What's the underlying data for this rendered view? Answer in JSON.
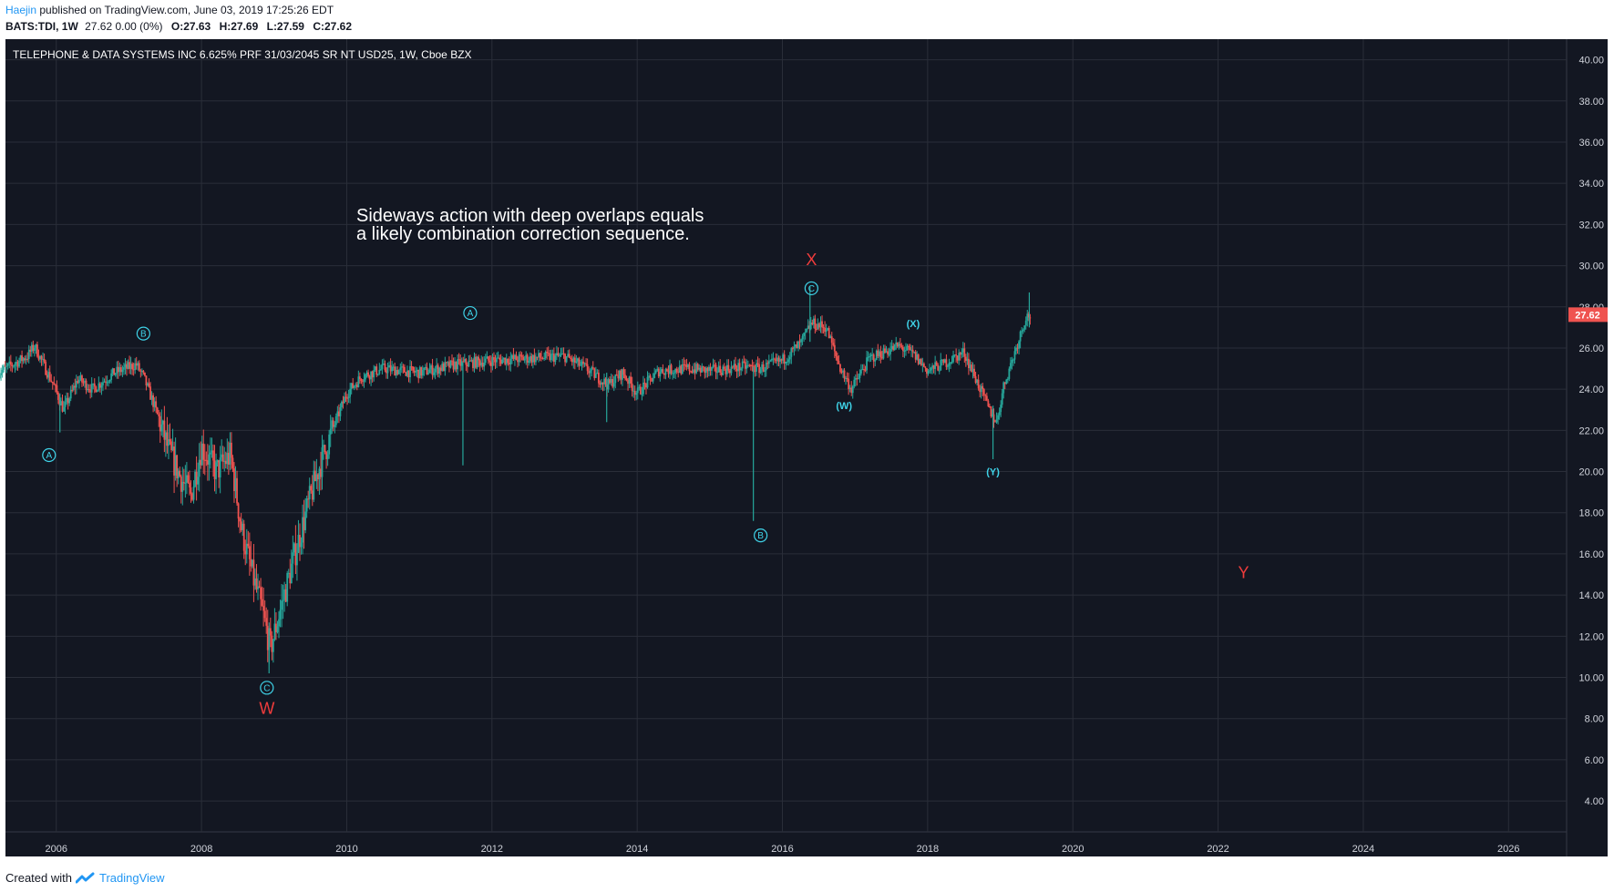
{
  "header": {
    "author": "Haejin",
    "published_text": "published on TradingView.com, June 03, 2019 17:25:26 EDT",
    "symbol": "BATS:TDI, 1W",
    "change": "27.62 0.00 (0%)",
    "open": "O:27.63",
    "high": "H:27.69",
    "low": "L:27.59",
    "close": "C:27.62"
  },
  "footer": {
    "created_with": "Created with",
    "brand": "TradingView"
  },
  "colors": {
    "background": "#131722",
    "grid": "#2a2e39",
    "up": "#26a69a",
    "down": "#ef5350",
    "wave_label": "#3fd3e8",
    "wave_red": "#f03c3c",
    "price_tag": "#ef5350"
  },
  "chart_data": {
    "type": "candlestick",
    "title": "TELEPHONE & DATA SYSTEMS INC 6.625% PRF 31/03/2045 SR NT USD25, 1W, Cboe BZX",
    "xlabel": "",
    "ylabel": "",
    "interval": "1W",
    "xlim": [
      2005.3,
      2026.8
    ],
    "ylim": [
      2.5,
      41
    ],
    "x_ticks": [
      "2006",
      "2008",
      "2010",
      "2012",
      "2014",
      "2016",
      "2018",
      "2020",
      "2022",
      "2024",
      "2026"
    ],
    "y_ticks": [
      "4.00",
      "6.00",
      "8.00",
      "10.00",
      "12.00",
      "14.00",
      "16.00",
      "18.00",
      "20.00",
      "22.00",
      "24.00",
      "26.00",
      "28.00",
      "30.00",
      "32.00",
      "34.00",
      "36.00",
      "38.00",
      "40.00"
    ],
    "grid": true,
    "last_price": 27.62,
    "last_price_label": "27.62",
    "price_path": [
      [
        2005.2,
        24.8
      ],
      [
        2005.6,
        25.6
      ],
      [
        2005.7,
        26.1
      ],
      [
        2005.85,
        25.0
      ],
      [
        2005.95,
        24.3
      ],
      [
        2006.1,
        23.0
      ],
      [
        2006.3,
        24.5
      ],
      [
        2006.5,
        24.0
      ],
      [
        2006.8,
        24.8
      ],
      [
        2007.1,
        25.2
      ],
      [
        2007.2,
        24.6
      ],
      [
        2007.35,
        23.2
      ],
      [
        2007.55,
        21.0
      ],
      [
        2007.7,
        19.8
      ],
      [
        2007.85,
        18.8
      ],
      [
        2008.0,
        21.2
      ],
      [
        2008.2,
        20.0
      ],
      [
        2008.4,
        20.8
      ],
      [
        2008.55,
        17.2
      ],
      [
        2008.7,
        15.0
      ],
      [
        2008.85,
        13.0
      ],
      [
        2008.95,
        11.4
      ],
      [
        2009.1,
        13.5
      ],
      [
        2009.25,
        15.5
      ],
      [
        2009.4,
        17.5
      ],
      [
        2009.6,
        20.0
      ],
      [
        2009.8,
        22.0
      ],
      [
        2010.0,
        23.8
      ],
      [
        2010.2,
        24.6
      ],
      [
        2010.5,
        25.0
      ],
      [
        2011.0,
        24.8
      ],
      [
        2011.5,
        25.2
      ],
      [
        2012.0,
        25.4
      ],
      [
        2012.5,
        25.5
      ],
      [
        2013.0,
        25.6
      ],
      [
        2013.3,
        25.0
      ],
      [
        2013.6,
        24.2
      ],
      [
        2013.8,
        24.8
      ],
      [
        2014.0,
        23.8
      ],
      [
        2014.3,
        24.9
      ],
      [
        2014.7,
        25.0
      ],
      [
        2015.0,
        24.9
      ],
      [
        2015.5,
        25.1
      ],
      [
        2015.7,
        25.0
      ],
      [
        2016.0,
        25.4
      ],
      [
        2016.25,
        26.2
      ],
      [
        2016.4,
        27.2
      ],
      [
        2016.6,
        27.0
      ],
      [
        2016.8,
        25.0
      ],
      [
        2016.95,
        24.0
      ],
      [
        2017.2,
        25.5
      ],
      [
        2017.6,
        26.1
      ],
      [
        2017.8,
        25.7
      ],
      [
        2018.0,
        24.9
      ],
      [
        2018.2,
        25.2
      ],
      [
        2018.5,
        25.8
      ],
      [
        2018.7,
        24.2
      ],
      [
        2018.85,
        23.0
      ],
      [
        2018.95,
        22.4
      ],
      [
        2019.05,
        24.2
      ],
      [
        2019.2,
        25.8
      ],
      [
        2019.35,
        27.5
      ],
      [
        2019.42,
        27.62
      ]
    ],
    "spikes": [
      {
        "x": 2011.6,
        "low": 20.3,
        "high": 25.3
      },
      {
        "x": 2015.6,
        "low": 17.6,
        "high": 25.1
      },
      {
        "x": 2016.38,
        "low": 26.3,
        "high": 29.0
      },
      {
        "x": 2018.9,
        "low": 20.6,
        "high": 23.2
      },
      {
        "x": 2008.93,
        "low": 10.2,
        "high": 12.3
      },
      {
        "x": 2006.05,
        "low": 21.9,
        "high": 23.8
      },
      {
        "x": 2013.58,
        "low": 22.4,
        "high": 24.8
      },
      {
        "x": 2019.4,
        "low": 27.0,
        "high": 28.7
      }
    ],
    "annotations": [
      {
        "text": "A",
        "x": 2005.9,
        "y": 20.8,
        "style": "circle"
      },
      {
        "text": "B",
        "x": 2007.2,
        "y": 26.7,
        "style": "circle"
      },
      {
        "text": "C",
        "x": 2008.9,
        "y": 9.5,
        "style": "circle"
      },
      {
        "text": "W",
        "x": 2008.9,
        "y": 8.5,
        "style": "red"
      },
      {
        "text": "A",
        "x": 2011.7,
        "y": 27.7,
        "style": "circle"
      },
      {
        "text": "B",
        "x": 2015.7,
        "y": 16.9,
        "style": "circle"
      },
      {
        "text": "C",
        "x": 2016.4,
        "y": 28.9,
        "style": "circle"
      },
      {
        "text": "X",
        "x": 2016.4,
        "y": 30.3,
        "style": "red"
      },
      {
        "text": "(W)",
        "x": 2016.85,
        "y": 23.2,
        "style": "plain"
      },
      {
        "text": "(X)",
        "x": 2017.8,
        "y": 27.2,
        "style": "plain"
      },
      {
        "text": "(Y)",
        "x": 2018.9,
        "y": 20.0,
        "style": "plain"
      },
      {
        "text": "Y",
        "x": 2022.35,
        "y": 15.1,
        "style": "red"
      }
    ],
    "note_lines": [
      "Sideways action with deep overlaps equals",
      "a likely combination correction sequence."
    ]
  }
}
